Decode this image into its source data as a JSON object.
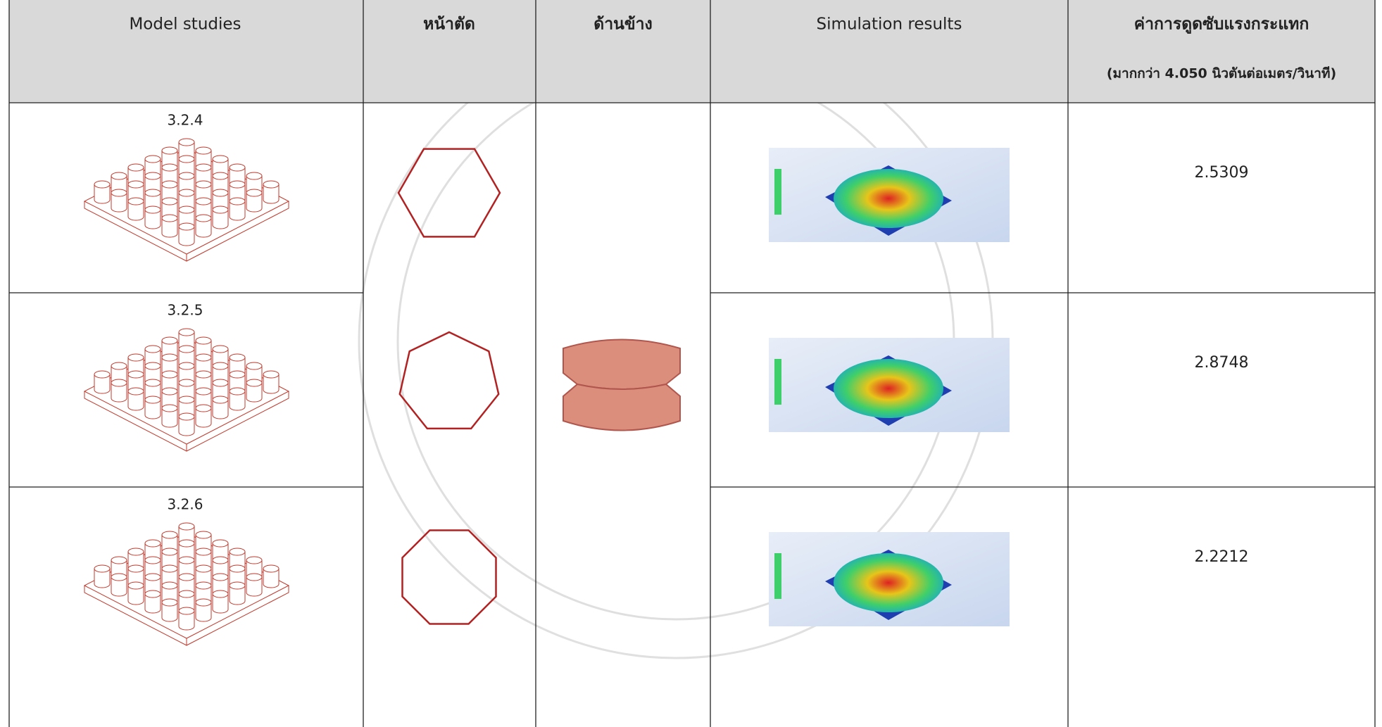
{
  "header": {
    "model": "Model studies",
    "cross_section": "หน้าตัด",
    "side": "ด้านข้าง",
    "simulation": "Simulation results",
    "absorption": "ค่าการดูดซับแรงกระแทก",
    "absorption_note": "(มากกว่า 4.050 นิวตันต่อเมตร/วินาที)"
  },
  "rows": [
    {
      "model": "3.2.4",
      "value": "2.5309"
    },
    {
      "model": "3.2.5",
      "value": "2.8748"
    },
    {
      "model": "3.2.6",
      "value": "2.2212"
    }
  ]
}
